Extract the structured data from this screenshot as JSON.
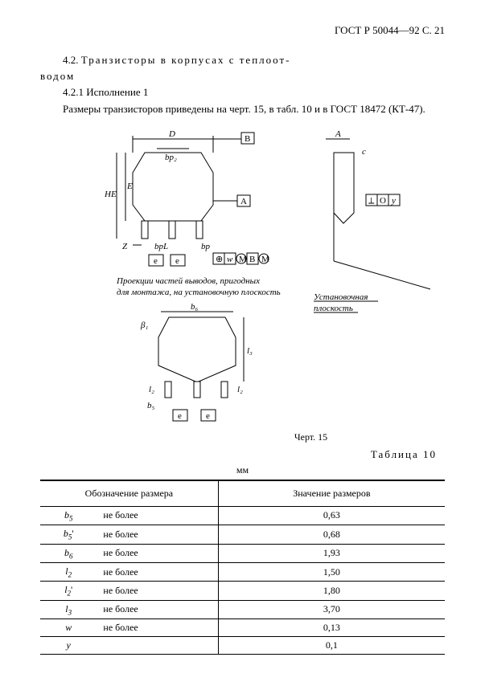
{
  "header": {
    "doc_id": "ГОСТ Р 50044—92 С. 21"
  },
  "text": {
    "p1a": "4.2. ",
    "p1b": "Транзисторы в корпусах с теплоот-",
    "p2": "водом",
    "p3": "4.2.1 Исполнение 1",
    "p4": "Размеры транзисторов приведены на черт. 15, в табл. 10 и в ГОСТ 18472 (КТ-47)."
  },
  "figure": {
    "caption": "Черт. 15",
    "labels": {
      "D": "D",
      "B": "B",
      "A": "A",
      "c": "c",
      "bp2": "bp₂",
      "HE": "HE",
      "E": "E",
      "Aref": "A",
      "Z": "Z",
      "bpL": "bpL",
      "bp": "bp",
      "e": "e",
      "w": "w",
      "M": "M",
      "Bsym": "B",
      "O": "O",
      "y": "y",
      "proj1": "Проекции частей выводов, пригодных",
      "proj2": "для монтажа, на установочную плоскость",
      "mount1": "Установочная",
      "mount2": "плоскость",
      "b6": "b₆",
      "beta1": "β₁",
      "l3": "l₃",
      "l2": "l₂",
      "l2p": "l₂",
      "b5": "b₅"
    }
  },
  "table": {
    "label": "Таблица 10",
    "unit": "мм",
    "head": {
      "col1": "Обозначение\nразмера",
      "col2": "Значение размеров"
    },
    "rows": [
      {
        "sym": "b",
        "sub": "5",
        "prime": "",
        "cond": "не более",
        "val": "0,63"
      },
      {
        "sym": "b",
        "sub": "5",
        "prime": "'",
        "cond": "не более",
        "val": "0,68"
      },
      {
        "sym": "b",
        "sub": "6",
        "prime": "",
        "cond": "не более",
        "val": "1,93"
      },
      {
        "sym": "l",
        "sub": "2",
        "prime": "",
        "cond": "не более",
        "val": "1,50"
      },
      {
        "sym": "l",
        "sub": "2",
        "prime": "'",
        "cond": "не более",
        "val": "1,80"
      },
      {
        "sym": "l",
        "sub": "3",
        "prime": "",
        "cond": "не более",
        "val": "3,70"
      },
      {
        "sym": "w",
        "sub": "",
        "prime": "",
        "cond": "не более",
        "val": "0,13"
      },
      {
        "sym": "y",
        "sub": "",
        "prime": "",
        "cond": "",
        "val": "0,1"
      }
    ]
  },
  "style": {
    "stroke": "#000000",
    "stroke_width": 1,
    "font_size_fig": 11
  }
}
